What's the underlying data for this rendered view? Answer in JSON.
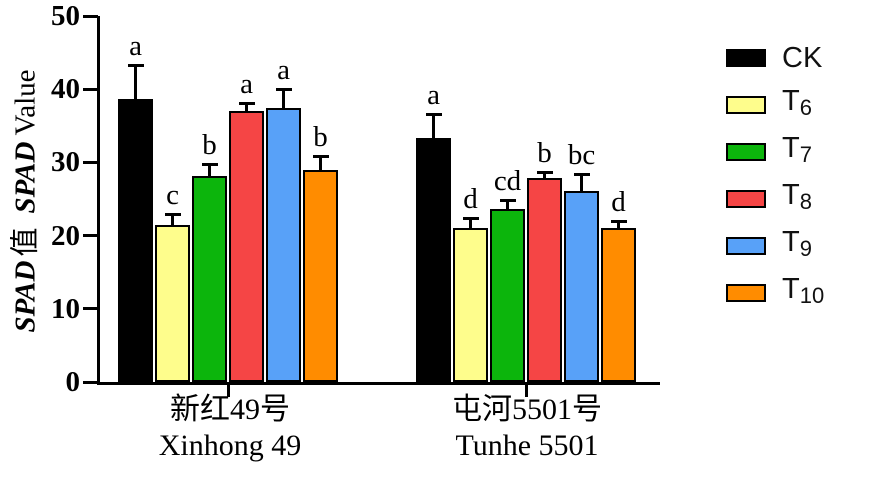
{
  "chart_data": {
    "type": "bar",
    "title": "",
    "ylabel": "SPAD 值 SPAD Value",
    "ylabel_parts": {
      "spad1": "SPAD",
      "zh": "值",
      "spad2": "SPAD",
      "en": "Value"
    },
    "ylim": [
      0,
      50
    ],
    "yticks": [
      0,
      10,
      20,
      30,
      40,
      50
    ],
    "grid": false,
    "legend_position": "right",
    "error_bars": "upper-cap",
    "bar_border_color": "#000000",
    "categories": [
      {
        "zh": "新红49号",
        "en": "Xinhong 49"
      },
      {
        "zh": "屯河5501号",
        "en": "Tunhe 5501"
      }
    ],
    "series": [
      {
        "label": "CK",
        "label_base": "CK",
        "label_sub": "",
        "color": "#000000",
        "values": [
          38.6,
          33.3
        ],
        "errors": [
          4.9,
          3.4
        ],
        "sig_letters": [
          "a",
          "a"
        ]
      },
      {
        "label": "T6",
        "label_base": "T",
        "label_sub": "6",
        "color": "#FEFD8C",
        "values": [
          21.4,
          21.0
        ],
        "errors": [
          1.7,
          1.6
        ],
        "sig_letters": [
          "c",
          "d"
        ]
      },
      {
        "label": "T7",
        "label_base": "T",
        "label_sub": "7",
        "color": "#0CB50C",
        "values": [
          28.2,
          23.6
        ],
        "errors": [
          1.7,
          1.4
        ],
        "sig_letters": [
          "b",
          "cd"
        ]
      },
      {
        "label": "T8",
        "label_base": "T",
        "label_sub": "8",
        "color": "#F54545",
        "values": [
          37.0,
          27.9
        ],
        "errors": [
          1.3,
          0.9
        ],
        "sig_letters": [
          "a",
          "b"
        ]
      },
      {
        "label": "T9",
        "label_base": "T",
        "label_sub": "9",
        "color": "#58A1F8",
        "values": [
          37.4,
          26.1
        ],
        "errors": [
          2.7,
          2.5
        ],
        "sig_letters": [
          "a",
          "bc"
        ]
      },
      {
        "label": "T10",
        "label_base": "T",
        "label_sub": "10",
        "color": "#FF8C00",
        "values": [
          29.0,
          21.1
        ],
        "errors": [
          2.0,
          1.1
        ],
        "sig_letters": [
          "b",
          "d"
        ]
      }
    ]
  }
}
